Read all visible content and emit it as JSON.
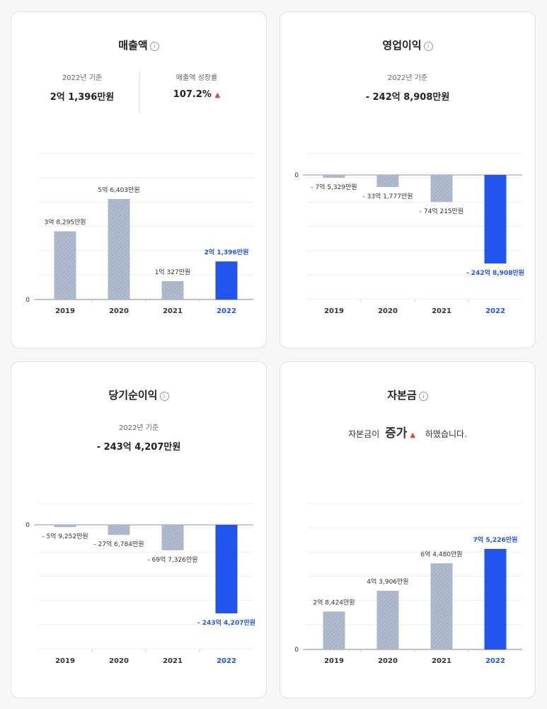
{
  "colors": {
    "highlight": "#2255ee",
    "bar": "#a9b4c8",
    "axis": "#8e8e9a",
    "grid": "#eeeeef",
    "labelMuted": "#333",
    "up": "#e64545"
  },
  "info_icon": "info-icon",
  "up_icon": "triangle-up-icon",
  "cards": {
    "revenue": {
      "title": "매출액",
      "left_label": "2022년 기준",
      "left_value": "2억 1,396만원",
      "right_label": "매출액 성장률",
      "right_value": "107.2%",
      "right_arrow": "▲"
    },
    "operating": {
      "title": "영업이익",
      "sub_label": "2022년 기준",
      "sub_value": "- 242억 8,908만원"
    },
    "net": {
      "title": "당기순이익",
      "sub_label": "2022년 기준",
      "sub_value": "- 243억 4,207만원"
    },
    "capital": {
      "title": "자본금",
      "pre": "자본금이",
      "big": "증가",
      "arrow": "▲",
      "post": "하였습니다."
    }
  },
  "chart_data": [
    {
      "id": "revenue",
      "type": "bar",
      "categories": [
        "2019",
        "2020",
        "2021",
        "2022"
      ],
      "values": [
        38295,
        56403,
        10327,
        21396
      ],
      "labels": [
        "3억 8,295만원",
        "5억 6,403만원",
        "1억 327만원",
        "2억 1,396만원"
      ],
      "highlight_index": 3,
      "zero_label": "0",
      "unit": "만원"
    },
    {
      "id": "operating",
      "type": "bar",
      "categories": [
        "2019",
        "2020",
        "2021",
        "2022"
      ],
      "values": [
        -75329,
        -331777,
        -740215,
        -2428908
      ],
      "labels": [
        "- 7억 5,329만원",
        "- 33억 1,777만원",
        "- 74억 215만원",
        "- 242억 8,908만원"
      ],
      "highlight_index": 3,
      "zero_label": "0",
      "unit": "만원"
    },
    {
      "id": "net",
      "type": "bar",
      "categories": [
        "2019",
        "2020",
        "2021",
        "2022"
      ],
      "values": [
        -59252,
        -276784,
        -697326,
        -2434207
      ],
      "labels": [
        "- 5억 9,252만원",
        "- 27억 6,784만원",
        "- 69억 7,326만원",
        "- 243억 4,207만원"
      ],
      "highlight_index": 3,
      "zero_label": "0",
      "unit": "만원"
    },
    {
      "id": "capital",
      "type": "bar",
      "categories": [
        "2019",
        "2020",
        "2021",
        "2022"
      ],
      "values": [
        28424,
        43906,
        64480,
        75226
      ],
      "labels": [
        "2억 8,424만원",
        "4억 3,906만원",
        "6억 4,480만원",
        "7억 5,226만원"
      ],
      "highlight_index": 3,
      "zero_label": "0",
      "unit": "만원"
    }
  ]
}
